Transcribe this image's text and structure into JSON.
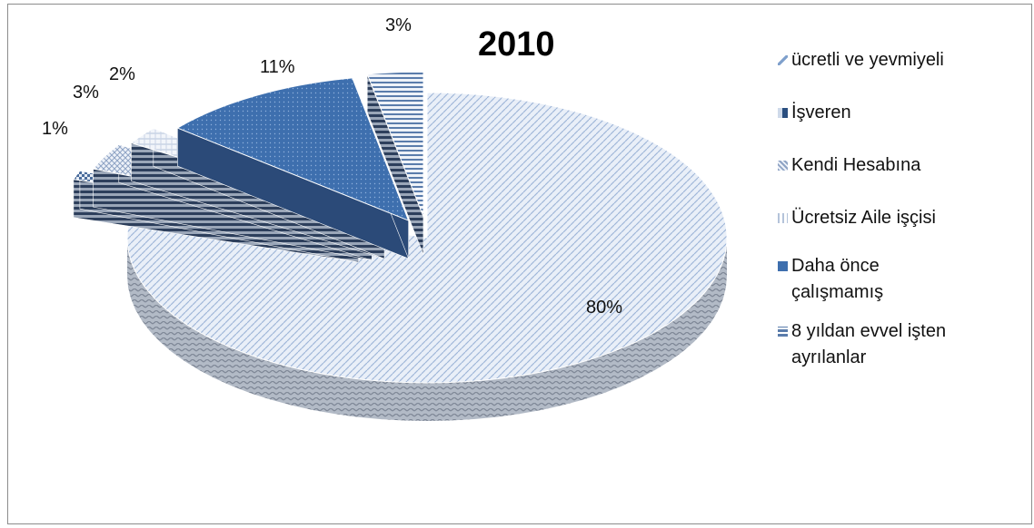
{
  "chart_data": {
    "type": "pie",
    "title": "2010",
    "categories": [
      "ücretli ve yevmiyeli",
      "İşveren",
      "Kendi Hesabına",
      "Ücretsiz Aile işçisi",
      "Daha önce çalışmamış",
      "8 yıldan evvel işten ayrılanlar"
    ],
    "values": [
      80,
      1,
      3,
      2,
      11,
      3
    ],
    "data_labels": [
      "80%",
      "1%",
      "3%",
      "2%",
      "11%",
      "3%"
    ],
    "colors": [
      "#b9cde8",
      "#2a4f80",
      "#c9d4e6",
      "#d3deee",
      "#3e6fae",
      "#8aa7cf"
    ],
    "legend_position": "right",
    "three_d": true
  },
  "legend": {
    "lines": [
      [
        "ücretli ve yevmiyeli"
      ],
      [
        "İşveren"
      ],
      [
        "Kendi Hesabına"
      ],
      [
        "Ücretsiz Aile işçisi"
      ],
      [
        "Daha önce",
        "çalışmamış"
      ],
      [
        "8 yıldan evvel işten",
        "ayrılanlar"
      ]
    ]
  }
}
